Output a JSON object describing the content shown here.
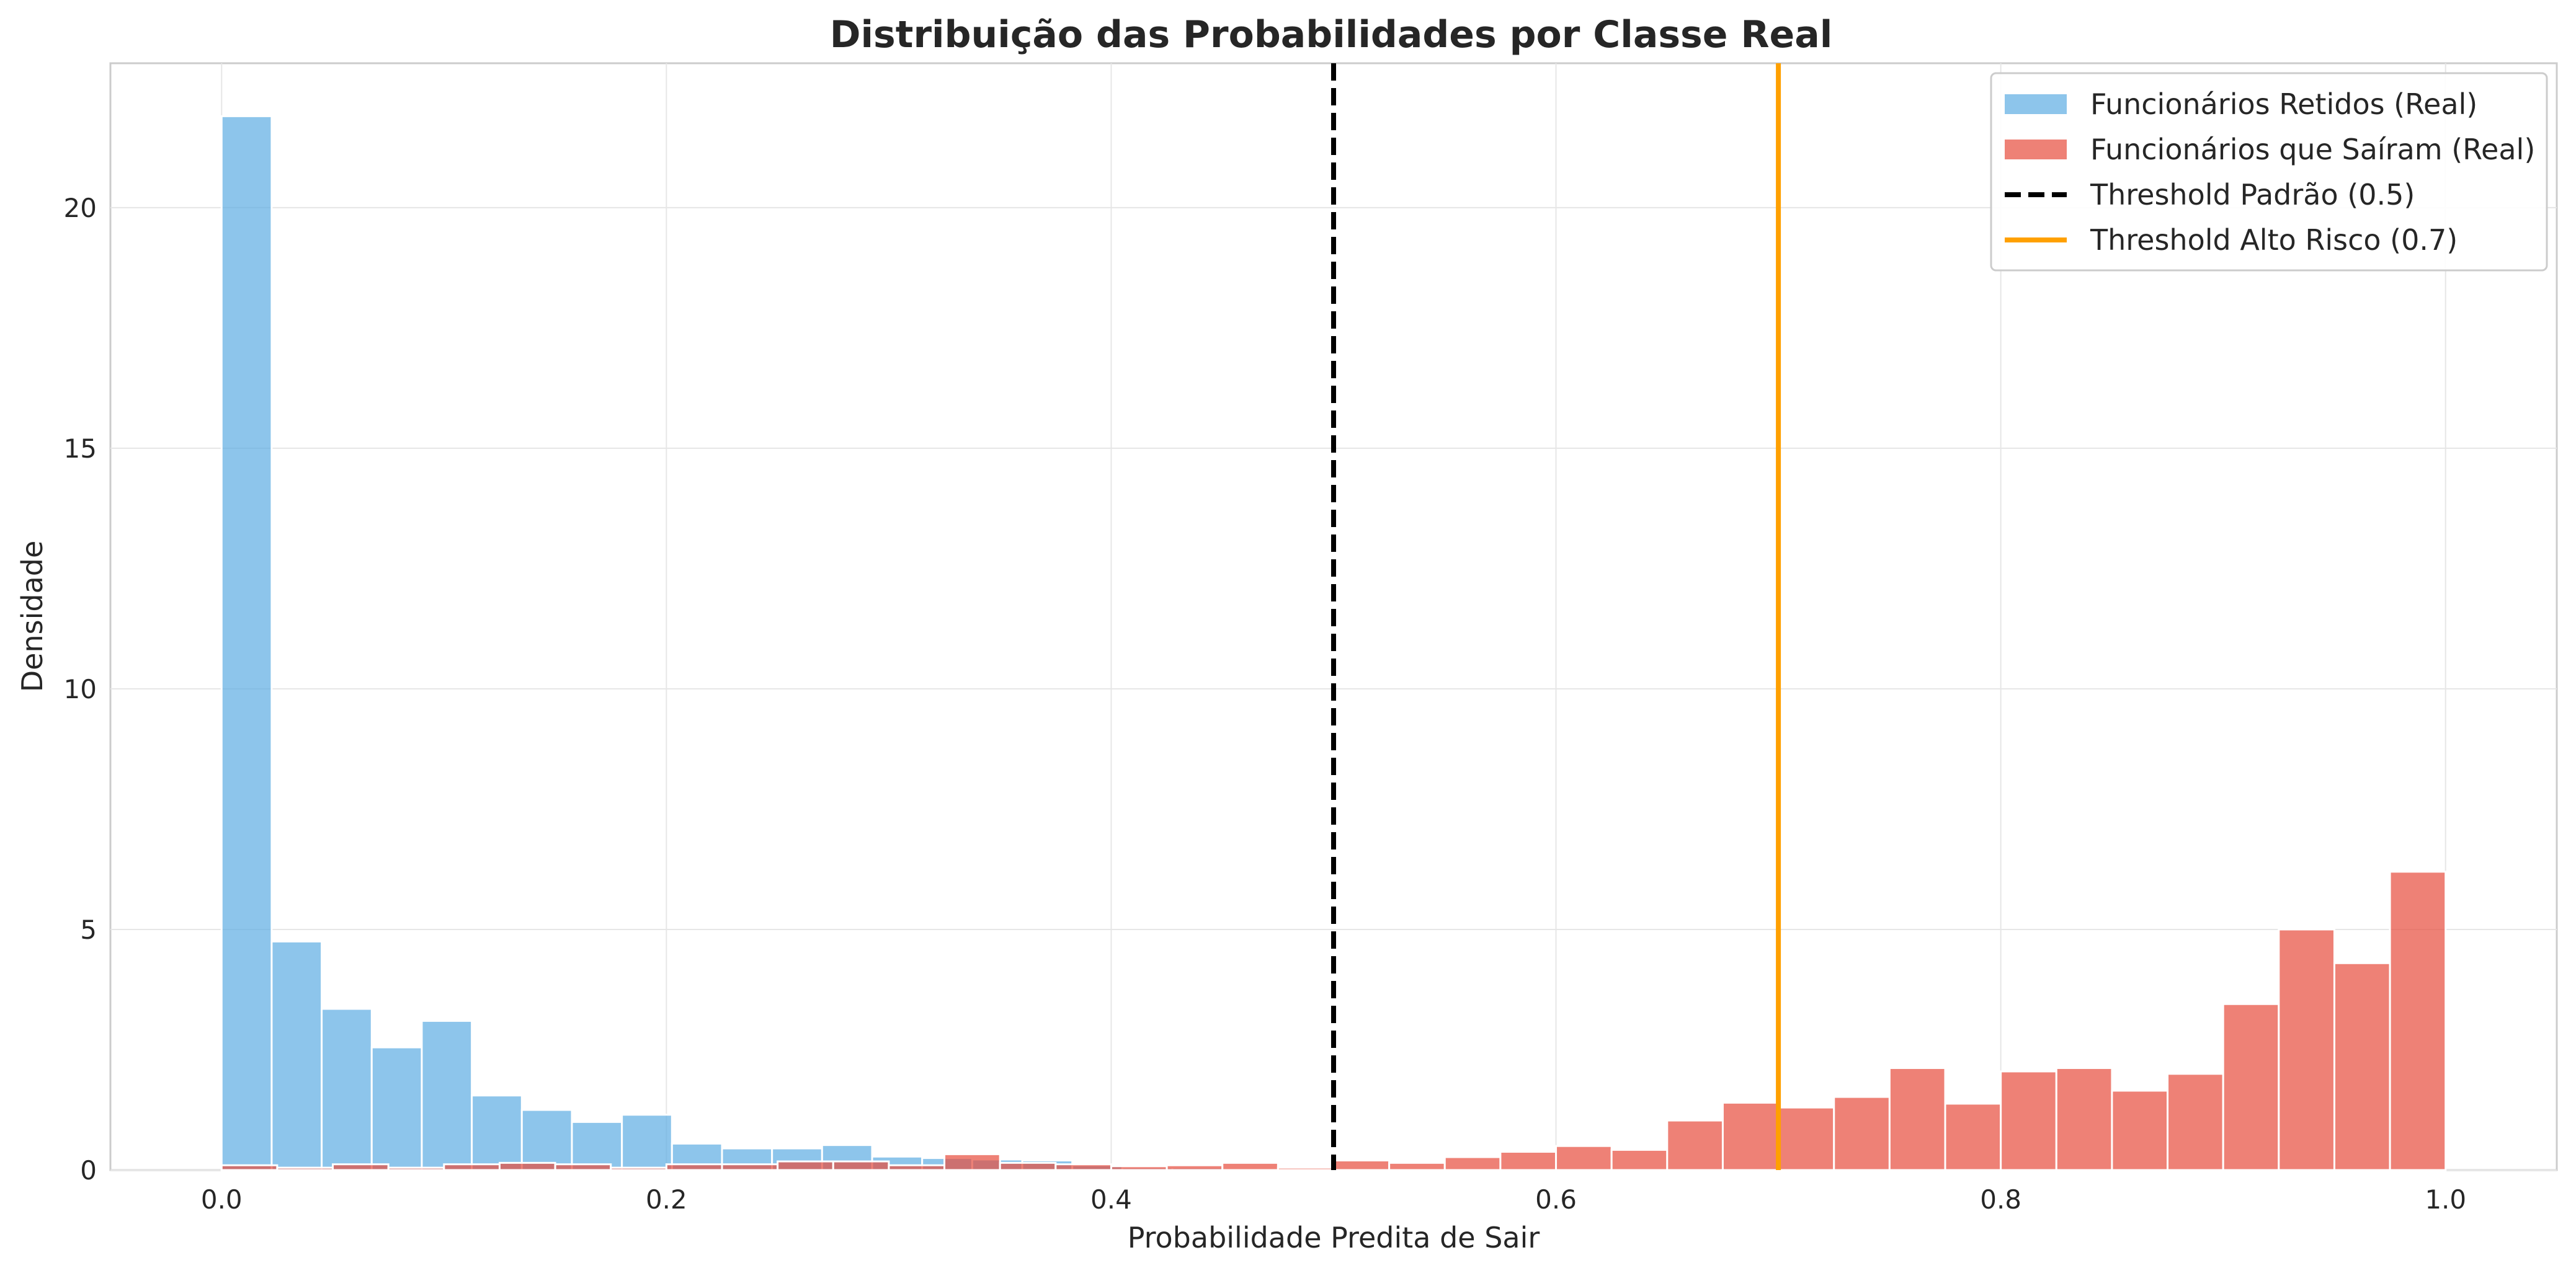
{
  "chart_data": {
    "type": "bar",
    "subtype": "histogram",
    "title": "Distribuição das Probabilidades por Classe Real",
    "xlabel": "Probabilidade Predita de Sair",
    "ylabel": "Densidade",
    "xlim": [
      -0.05,
      1.05
    ],
    "ylim": [
      0,
      23
    ],
    "xticks": [
      0.0,
      0.2,
      0.4,
      0.6,
      0.8,
      1.0
    ],
    "xtick_labels": [
      "0.0",
      "0.2",
      "0.4",
      "0.6",
      "0.8",
      "1.0"
    ],
    "yticks": [
      0,
      5,
      10,
      15,
      20
    ],
    "ytick_labels": [
      "0",
      "5",
      "10",
      "15",
      "20"
    ],
    "grid": true,
    "legend_position": "top-right",
    "series": [
      {
        "name": "Funcionários Retidos (Real)",
        "color": "#5DADE2",
        "bins": [
          [
            0.0,
            0.0225,
            21.9
          ],
          [
            0.0225,
            0.045,
            4.75
          ],
          [
            0.045,
            0.0675,
            3.35
          ],
          [
            0.0675,
            0.09,
            2.55
          ],
          [
            0.09,
            0.1125,
            3.1
          ],
          [
            0.1125,
            0.135,
            1.55
          ],
          [
            0.135,
            0.1575,
            1.25
          ],
          [
            0.1575,
            0.18,
            1.0
          ],
          [
            0.18,
            0.2025,
            1.15
          ],
          [
            0.2025,
            0.225,
            0.55
          ],
          [
            0.225,
            0.2475,
            0.45
          ],
          [
            0.2475,
            0.27,
            0.45
          ],
          [
            0.27,
            0.2925,
            0.52
          ],
          [
            0.2925,
            0.315,
            0.28
          ],
          [
            0.315,
            0.3375,
            0.25
          ],
          [
            0.3375,
            0.36,
            0.22
          ],
          [
            0.36,
            0.3825,
            0.2
          ],
          [
            0.3825,
            0.405,
            0.1
          ],
          [
            0.405,
            0.4275,
            0.05
          ],
          [
            0.4275,
            0.45,
            0.05
          ]
        ]
      },
      {
        "name": "Funcionários que Saíram (Real)",
        "color": "#E74C3C",
        "bins": [
          [
            0.0,
            0.025,
            0.1
          ],
          [
            0.025,
            0.05,
            0.05
          ],
          [
            0.05,
            0.075,
            0.12
          ],
          [
            0.075,
            0.1,
            0.05
          ],
          [
            0.1,
            0.125,
            0.12
          ],
          [
            0.125,
            0.15,
            0.15
          ],
          [
            0.15,
            0.175,
            0.12
          ],
          [
            0.175,
            0.2,
            0.05
          ],
          [
            0.2,
            0.225,
            0.12
          ],
          [
            0.225,
            0.25,
            0.12
          ],
          [
            0.25,
            0.275,
            0.18
          ],
          [
            0.275,
            0.3,
            0.18
          ],
          [
            0.3,
            0.325,
            0.1
          ],
          [
            0.325,
            0.35,
            0.33
          ],
          [
            0.35,
            0.375,
            0.15
          ],
          [
            0.375,
            0.4,
            0.12
          ],
          [
            0.4,
            0.425,
            0.08
          ],
          [
            0.425,
            0.45,
            0.1
          ],
          [
            0.45,
            0.475,
            0.15
          ],
          [
            0.475,
            0.5,
            0.05
          ],
          [
            0.5,
            0.525,
            0.2
          ],
          [
            0.525,
            0.55,
            0.15
          ],
          [
            0.55,
            0.575,
            0.27
          ],
          [
            0.575,
            0.6,
            0.38
          ],
          [
            0.6,
            0.625,
            0.5
          ],
          [
            0.625,
            0.65,
            0.42
          ],
          [
            0.65,
            0.675,
            1.03
          ],
          [
            0.675,
            0.7,
            1.4
          ],
          [
            0.7,
            0.725,
            1.3
          ],
          [
            0.725,
            0.75,
            1.52
          ],
          [
            0.75,
            0.775,
            2.12
          ],
          [
            0.775,
            0.8,
            1.38
          ],
          [
            0.8,
            0.825,
            2.05
          ],
          [
            0.825,
            0.85,
            2.12
          ],
          [
            0.85,
            0.875,
            1.65
          ],
          [
            0.875,
            0.9,
            2.0
          ],
          [
            0.9,
            0.925,
            3.45
          ],
          [
            0.925,
            0.95,
            5.0
          ],
          [
            0.95,
            0.975,
            4.3
          ],
          [
            0.975,
            1.0,
            6.2
          ]
        ]
      }
    ],
    "vlines": [
      {
        "name": "Threshold Padrão (0.5)",
        "x": 0.5,
        "color": "#000000",
        "style": "dashed"
      },
      {
        "name": "Threshold Alto Risco (0.7)",
        "x": 0.7,
        "color": "#FFA000",
        "style": "solid"
      }
    ]
  }
}
